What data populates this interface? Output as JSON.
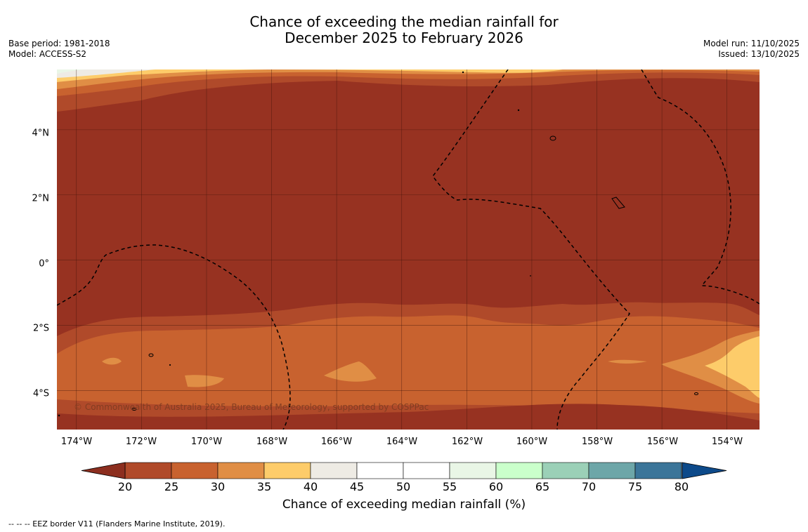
{
  "title": {
    "line1": "Chance of exceeding the median rainfall for",
    "line2": "December 2025 to February 2026"
  },
  "meta_left": {
    "base_period": "Base period: 1981-2018",
    "model": "Model: ACCESS-S2"
  },
  "meta_right": {
    "model_run": "Model run: 11/10/2025",
    "issued": "Issued: 13/10/2025"
  },
  "map": {
    "lat_labels": [
      "4°N",
      "2°N",
      "0°",
      "2°S",
      "4°S"
    ],
    "lon_labels": [
      "174°W",
      "172°W",
      "170°W",
      "168°W",
      "166°W",
      "164°W",
      "162°W",
      "160°W",
      "158°W",
      "156°W",
      "154°W"
    ],
    "copyright": "© Commonwealth of Australia 2025, Bureau of Meteorology, supported by COSPPac",
    "extent": {
      "lon_west": -174.6,
      "lon_east": -153.0,
      "lat_south": -5.2,
      "lat_north": 5.85
    }
  },
  "colorbar": {
    "ticks": [
      "20",
      "25",
      "30",
      "35",
      "40",
      "45",
      "50",
      "55",
      "60",
      "65",
      "70",
      "75",
      "80"
    ],
    "colors": [
      "#b04a2a",
      "#c8622f",
      "#e08e45",
      "#fdcc6a",
      "#eeebe4",
      "#ffffff",
      "#ffffff",
      "#e9f6e6",
      "#caffcb",
      "#9bd0b7",
      "#6da6a8",
      "#3b7599"
    ],
    "under_color": "#8c2e1f",
    "over_color": "#0d4a8a",
    "label": "Chance of exceeding median rainfall (%)"
  },
  "footnote": "--  --  -- EEZ border V11 (Flanders Marine Institute, 2019)."
}
